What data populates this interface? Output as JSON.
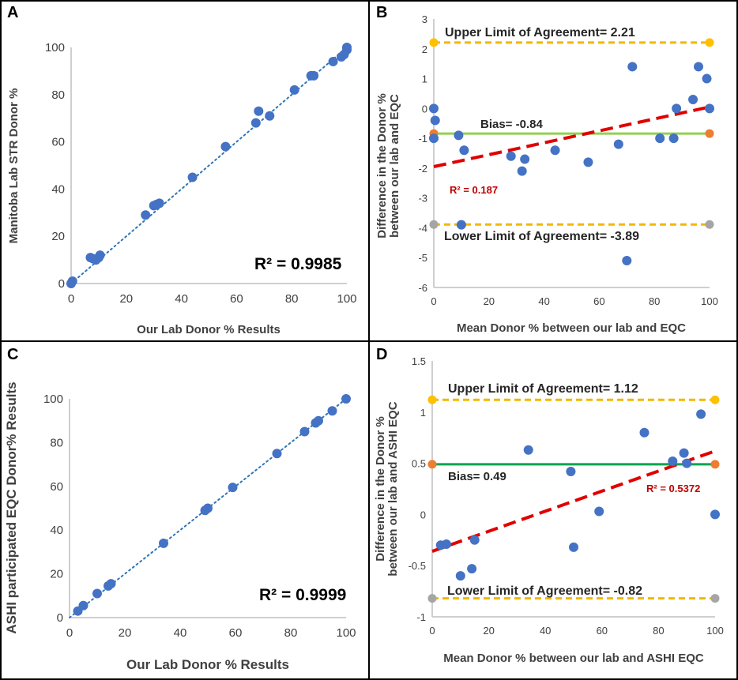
{
  "chart_data": [
    {
      "panel": "A",
      "type": "scatter",
      "xlabel": "Our Lab Donor % Results",
      "ylabel": "Manitoba Lab STR Donor %",
      "xlim": [
        0,
        100
      ],
      "ylim": [
        0,
        100
      ],
      "xticks": [
        "0",
        "20",
        "40",
        "60",
        "80",
        "100"
      ],
      "yticks": [
        "0",
        "20",
        "40",
        "60",
        "80",
        "100"
      ],
      "points": [
        [
          0,
          0
        ],
        [
          0.5,
          1
        ],
        [
          7,
          11
        ],
        [
          8,
          10.5
        ],
        [
          9,
          10
        ],
        [
          10,
          11
        ],
        [
          10.5,
          12
        ],
        [
          27,
          29
        ],
        [
          30,
          33
        ],
        [
          31,
          33.5
        ],
        [
          32,
          34
        ],
        [
          44,
          45
        ],
        [
          56,
          58
        ],
        [
          67,
          68
        ],
        [
          68,
          73
        ],
        [
          72,
          71
        ],
        [
          81,
          82
        ],
        [
          87,
          88
        ],
        [
          88,
          88
        ],
        [
          95,
          94
        ],
        [
          98,
          96
        ],
        [
          99,
          97
        ],
        [
          100,
          99
        ],
        [
          100,
          100
        ]
      ],
      "trendline": {
        "style": "dotted",
        "from": [
          0,
          0
        ],
        "to": [
          100,
          100
        ]
      },
      "r2_text": "R² = 0.9985"
    },
    {
      "panel": "B",
      "type": "scatter",
      "xlabel": "Mean Donor % between our lab and EQC",
      "ylabel_line1": "Difference in the Donor %",
      "ylabel_line2": "between our lab and EQC",
      "xlim": [
        0,
        100
      ],
      "ylim": [
        -6,
        3
      ],
      "xticks": [
        "0",
        "20",
        "40",
        "60",
        "80",
        "100"
      ],
      "yticks": [
        "-6",
        "-5",
        "-4",
        "-3",
        "-2",
        "-1",
        "0",
        "1",
        "2",
        "3"
      ],
      "points": [
        [
          0,
          0
        ],
        [
          0.5,
          -0.4
        ],
        [
          0,
          -1
        ],
        [
          9,
          -0.9
        ],
        [
          10,
          -3.9
        ],
        [
          11,
          -1.4
        ],
        [
          28,
          -1.6
        ],
        [
          32,
          -2.1
        ],
        [
          33,
          -1.7
        ],
        [
          44,
          -1.4
        ],
        [
          56,
          -1.8
        ],
        [
          67,
          -1.2
        ],
        [
          70,
          -5.1
        ],
        [
          72,
          1.4
        ],
        [
          82,
          -1
        ],
        [
          87,
          -1
        ],
        [
          88,
          0
        ],
        [
          94,
          0.3
        ],
        [
          96,
          1.4
        ],
        [
          99,
          1
        ],
        [
          100,
          0
        ]
      ],
      "upper_loa": 2.21,
      "lower_loa": -3.89,
      "bias": -0.84,
      "upper_label": "Upper Limit of Agreement= 2.21",
      "lower_label": "Lower Limit of Agreement= -3.89",
      "bias_label": "Bias= -0.84",
      "regression": {
        "from": [
          0,
          -1.95
        ],
        "to": [
          100,
          0.05
        ]
      },
      "r2_text": "R² = 0.187"
    },
    {
      "panel": "C",
      "type": "scatter",
      "xlabel": "Our Lab Donor % Results",
      "ylabel": "ASHI participated  EQC Donor% Results",
      "xlim": [
        0,
        100
      ],
      "ylim": [
        0,
        100
      ],
      "xticks": [
        "0",
        "20",
        "40",
        "60",
        "80",
        "100"
      ],
      "yticks": [
        "0",
        "20",
        "40",
        "60",
        "80",
        "100"
      ],
      "points": [
        [
          3,
          3
        ],
        [
          5,
          5.5
        ],
        [
          10,
          11
        ],
        [
          14,
          14.5
        ],
        [
          15,
          15.5
        ],
        [
          34,
          34
        ],
        [
          49,
          49
        ],
        [
          50,
          50
        ],
        [
          59,
          59.5
        ],
        [
          75,
          75
        ],
        [
          85,
          85
        ],
        [
          89,
          89
        ],
        [
          90,
          90
        ],
        [
          95,
          94.5
        ],
        [
          100,
          100
        ]
      ],
      "trendline": {
        "style": "dotted",
        "from": [
          0,
          0
        ],
        "to": [
          100,
          100
        ]
      },
      "r2_text": "R² = 0.9999"
    },
    {
      "panel": "D",
      "type": "scatter",
      "xlabel": "Mean Donor % between our lab and ASHI EQC",
      "ylabel_line1": "Difference in the Donor %",
      "ylabel_line2": "between our lab and ASHI EQC",
      "xlim": [
        0,
        100
      ],
      "ylim": [
        -1,
        1.5
      ],
      "xticks": [
        "0",
        "20",
        "40",
        "60",
        "80",
        "100"
      ],
      "yticks": [
        "-1",
        "-0.5",
        "0",
        "0.5",
        "1",
        "1.5"
      ],
      "points": [
        [
          3,
          -0.3
        ],
        [
          5,
          -0.29
        ],
        [
          10,
          -0.6
        ],
        [
          14,
          -0.53
        ],
        [
          15,
          -0.25
        ],
        [
          34,
          0.63
        ],
        [
          49,
          0.42
        ],
        [
          50,
          -0.32
        ],
        [
          59,
          0.03
        ],
        [
          75,
          0.8
        ],
        [
          85,
          0.52
        ],
        [
          89,
          0.6
        ],
        [
          90,
          0.5
        ],
        [
          95,
          0.98
        ],
        [
          100,
          0
        ]
      ],
      "upper_loa": 1.12,
      "lower_loa": -0.82,
      "bias": 0.49,
      "upper_label": "Upper Limit of Agreement= 1.12",
      "lower_label": "Lower Limit of Agreement= -0.82",
      "bias_label": "Bias= 0.49",
      "regression": {
        "from": [
          0,
          -0.36
        ],
        "to": [
          100,
          0.62
        ]
      },
      "r2_text": "R² = 0.5372"
    }
  ]
}
